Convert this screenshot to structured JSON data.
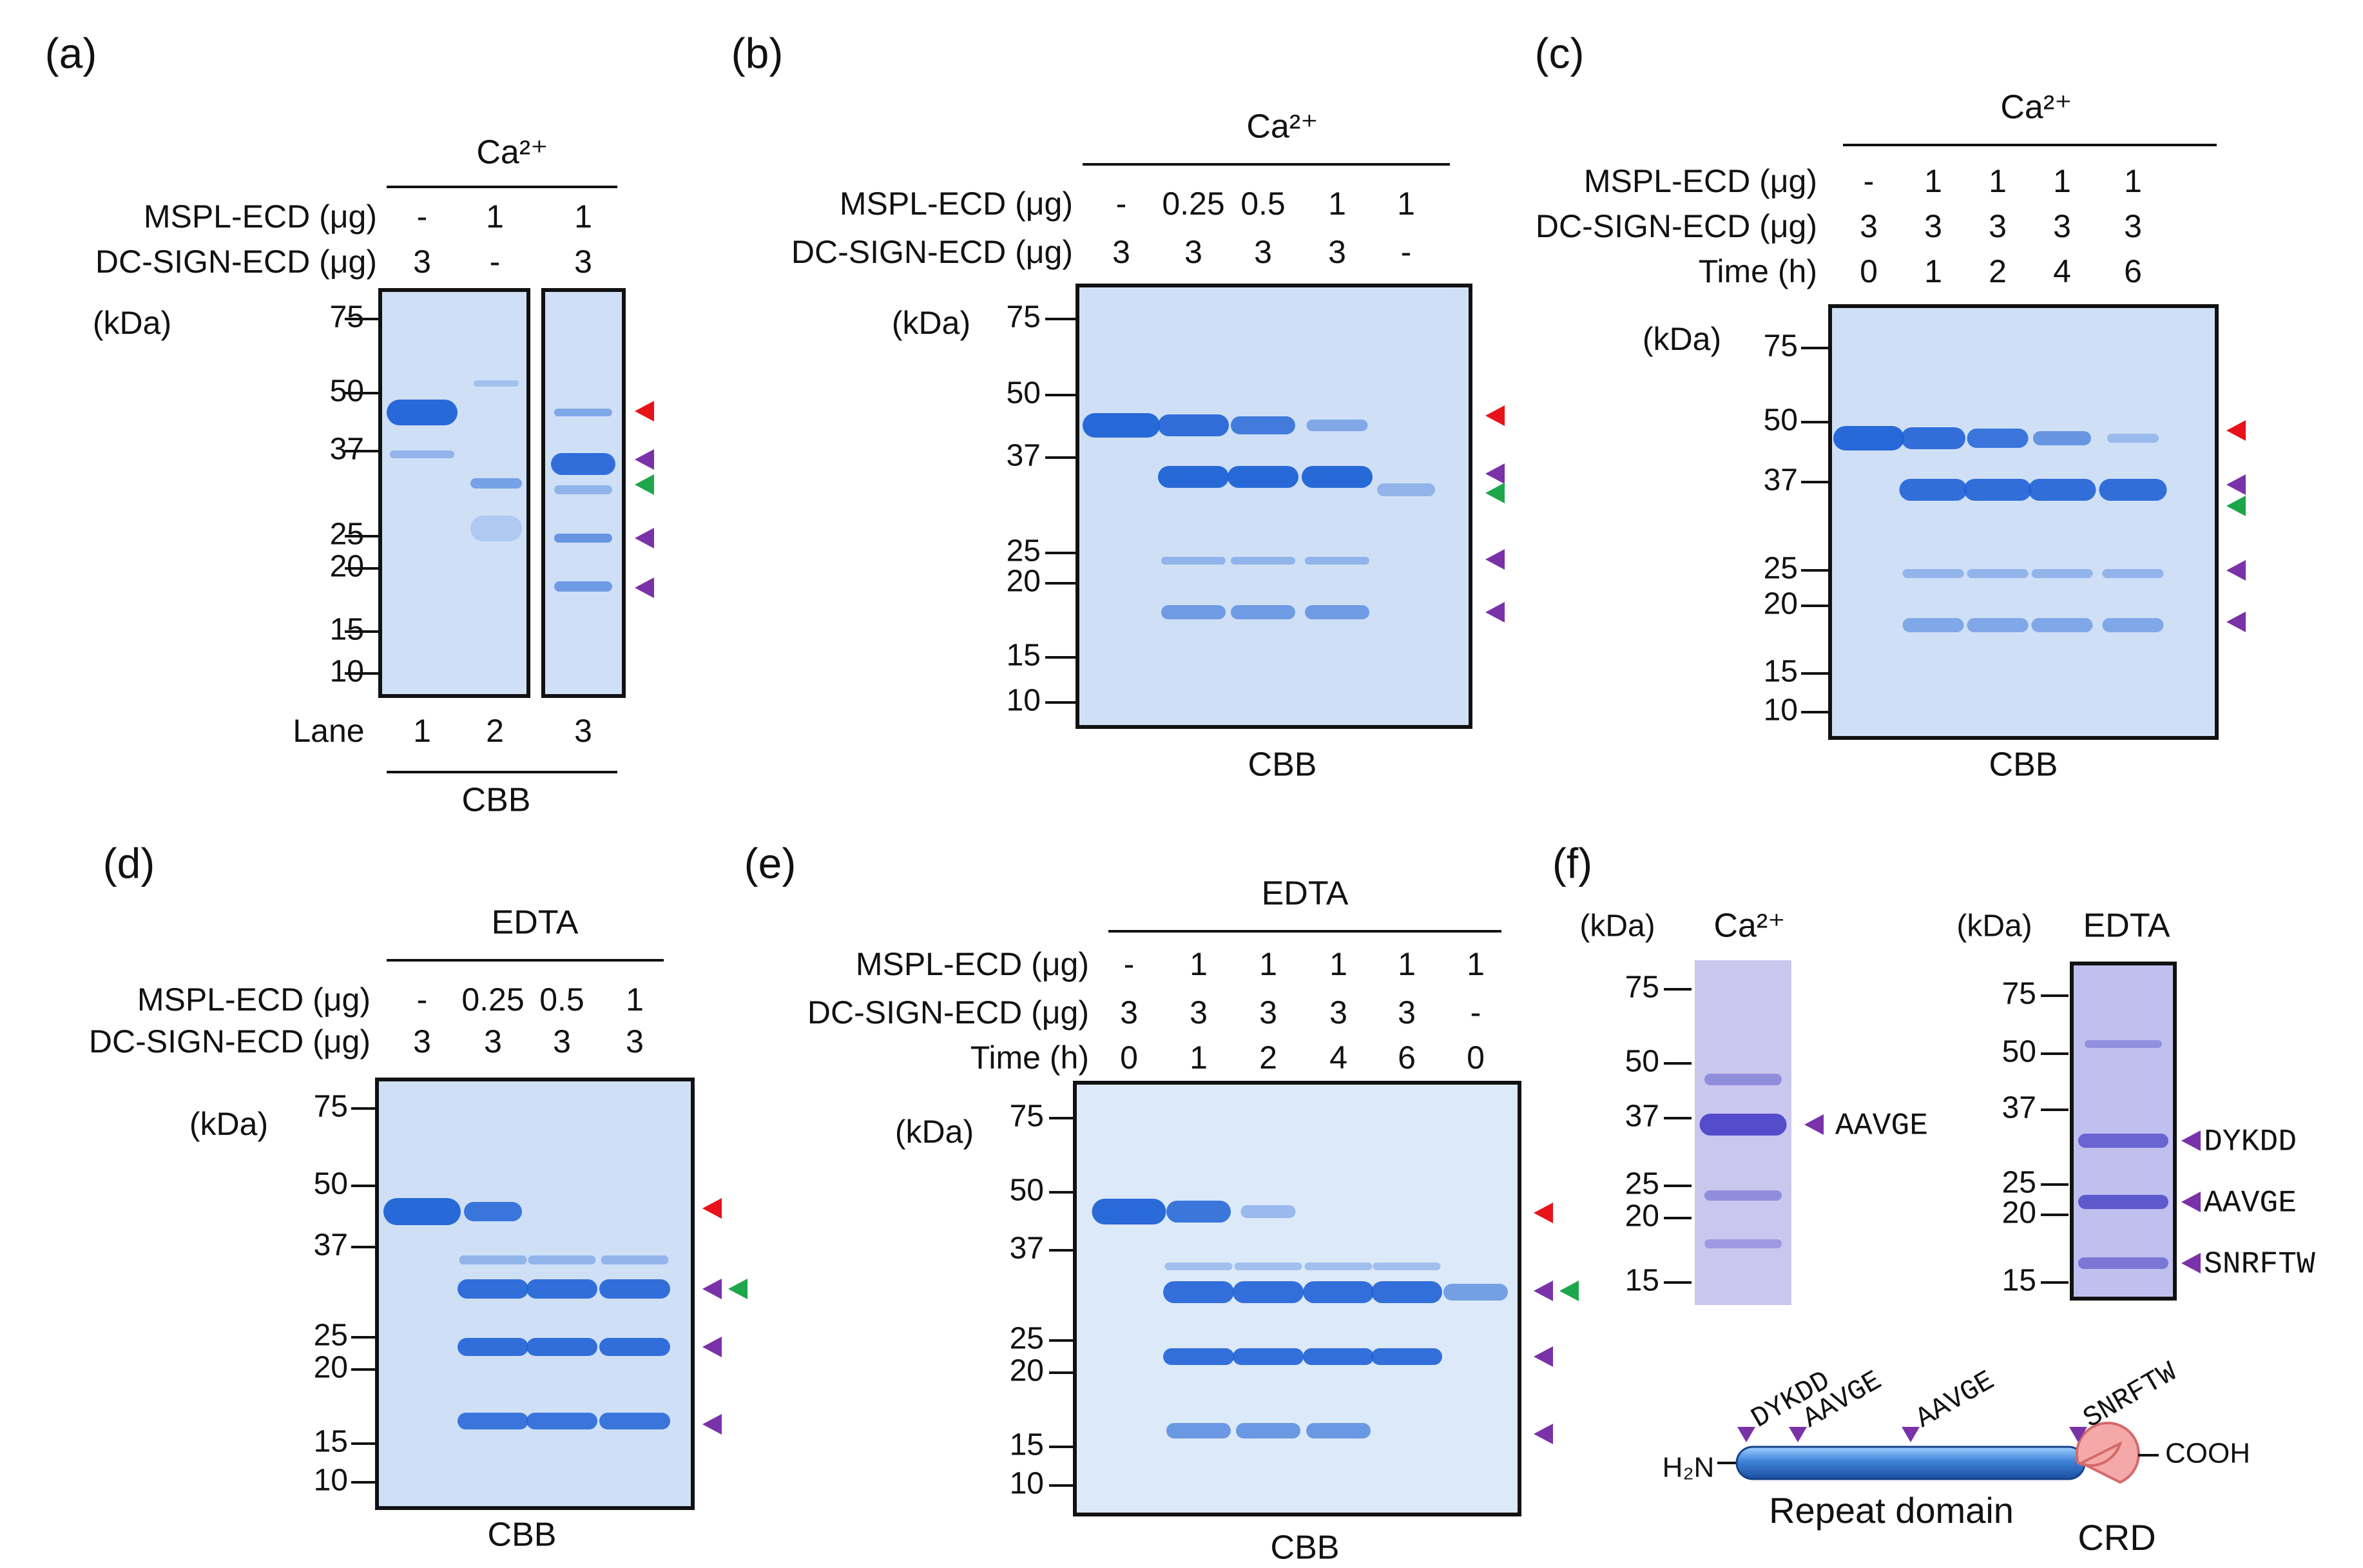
{
  "colors": {
    "red_arrow": "#e8121a",
    "purple_arrow": "#7a32a8",
    "green_arrow": "#1ea64b",
    "gel_bg": "#cfe0f6",
    "gel_bg_violet": "#c9c7ee",
    "band": "#1f62d6",
    "band_violet": "#4e46c8",
    "domain_blue": "#3f82d8",
    "crd_pink": "#f4a8a8"
  },
  "panels": {
    "a": {
      "label": "(a)",
      "condition": "Ca²⁺",
      "row_labels": [
        "MSPL-ECD (μg)",
        "DC-SIGN-ECD (μg)"
      ],
      "rows": [
        [
          "-",
          "1",
          "1"
        ],
        [
          "3",
          "-",
          "3"
        ]
      ],
      "kda_label": "(kDa)",
      "markers": [
        "75",
        "50",
        "37",
        "25",
        "20",
        "15",
        "10"
      ],
      "lane_label": "Lane",
      "lanes": [
        "1",
        "2",
        "3"
      ],
      "stain": "CBB",
      "arrows": [
        "red",
        "purple",
        "green",
        "purple",
        "purple"
      ]
    },
    "b": {
      "label": "(b)",
      "condition": "Ca²⁺",
      "row_labels": [
        "MSPL-ECD (μg)",
        "DC-SIGN-ECD (μg)"
      ],
      "rows": [
        [
          "-",
          "0.25",
          "0.5",
          "1",
          "1"
        ],
        [
          "3",
          "3",
          "3",
          "3",
          "-"
        ]
      ],
      "kda_label": "(kDa)",
      "markers": [
        "75",
        "50",
        "37",
        "25",
        "20",
        "15",
        "10"
      ],
      "stain": "CBB",
      "arrows": [
        "red",
        "purple",
        "green",
        "purple",
        "purple"
      ]
    },
    "c": {
      "label": "(c)",
      "condition": "Ca²⁺",
      "row_labels": [
        "MSPL-ECD (μg)",
        "DC-SIGN-ECD (μg)",
        "Time (h)"
      ],
      "rows": [
        [
          "-",
          "1",
          "1",
          "1",
          "1"
        ],
        [
          "3",
          "3",
          "3",
          "3",
          "3"
        ],
        [
          "0",
          "1",
          "2",
          "4",
          "6"
        ]
      ],
      "kda_label": "(kDa)",
      "markers": [
        "75",
        "50",
        "37",
        "25",
        "20",
        "15",
        "10"
      ],
      "stain": "CBB",
      "arrows": [
        "red",
        "purple",
        "green",
        "purple",
        "purple"
      ]
    },
    "d": {
      "label": "(d)",
      "condition": "EDTA",
      "row_labels": [
        "MSPL-ECD (μg)",
        "DC-SIGN-ECD (μg)"
      ],
      "rows": [
        [
          "-",
          "0.25",
          "0.5",
          "1"
        ],
        [
          "3",
          "3",
          "3",
          "3"
        ]
      ],
      "kda_label": "(kDa)",
      "markers": [
        "75",
        "50",
        "37",
        "25",
        "20",
        "15",
        "10"
      ],
      "stain": "CBB",
      "arrows": [
        "red",
        "purple",
        "green",
        "purple",
        "purple"
      ]
    },
    "e": {
      "label": "(e)",
      "condition": "EDTA",
      "row_labels": [
        "MSPL-ECD (μg)",
        "DC-SIGN-ECD (μg)",
        "Time (h)"
      ],
      "rows": [
        [
          "-",
          "1",
          "1",
          "1",
          "1",
          "1"
        ],
        [
          "3",
          "3",
          "3",
          "3",
          "3",
          "-"
        ],
        [
          "0",
          "1",
          "2",
          "4",
          "6",
          "0"
        ]
      ],
      "kda_label": "(kDa)",
      "markers": [
        "75",
        "50",
        "37",
        "25",
        "20",
        "15",
        "10"
      ],
      "stain": "CBB",
      "arrows": [
        "red",
        "purple",
        "green",
        "purple",
        "purple"
      ]
    },
    "f": {
      "label": "(f)",
      "gels": [
        {
          "condition": "Ca²⁺",
          "kda_label": "(kDa)",
          "markers": [
            "75",
            "50",
            "37",
            "25",
            "20",
            "15"
          ],
          "sequences": [
            "AAVGE"
          ]
        },
        {
          "condition": "EDTA",
          "kda_label": "(kDa)",
          "markers": [
            "75",
            "50",
            "37",
            "25",
            "20",
            "15"
          ],
          "sequences": [
            "DYKDD",
            "AAVGE",
            "SNRFTW"
          ]
        }
      ],
      "diagram": {
        "n_term": "H₂N",
        "c_term": "COOH",
        "repeat_label": "Repeat domain",
        "crd_label": "CRD",
        "sites": [
          "DYKDD",
          "AAVGE",
          "AAVGE",
          "SNRFTW"
        ]
      }
    }
  }
}
